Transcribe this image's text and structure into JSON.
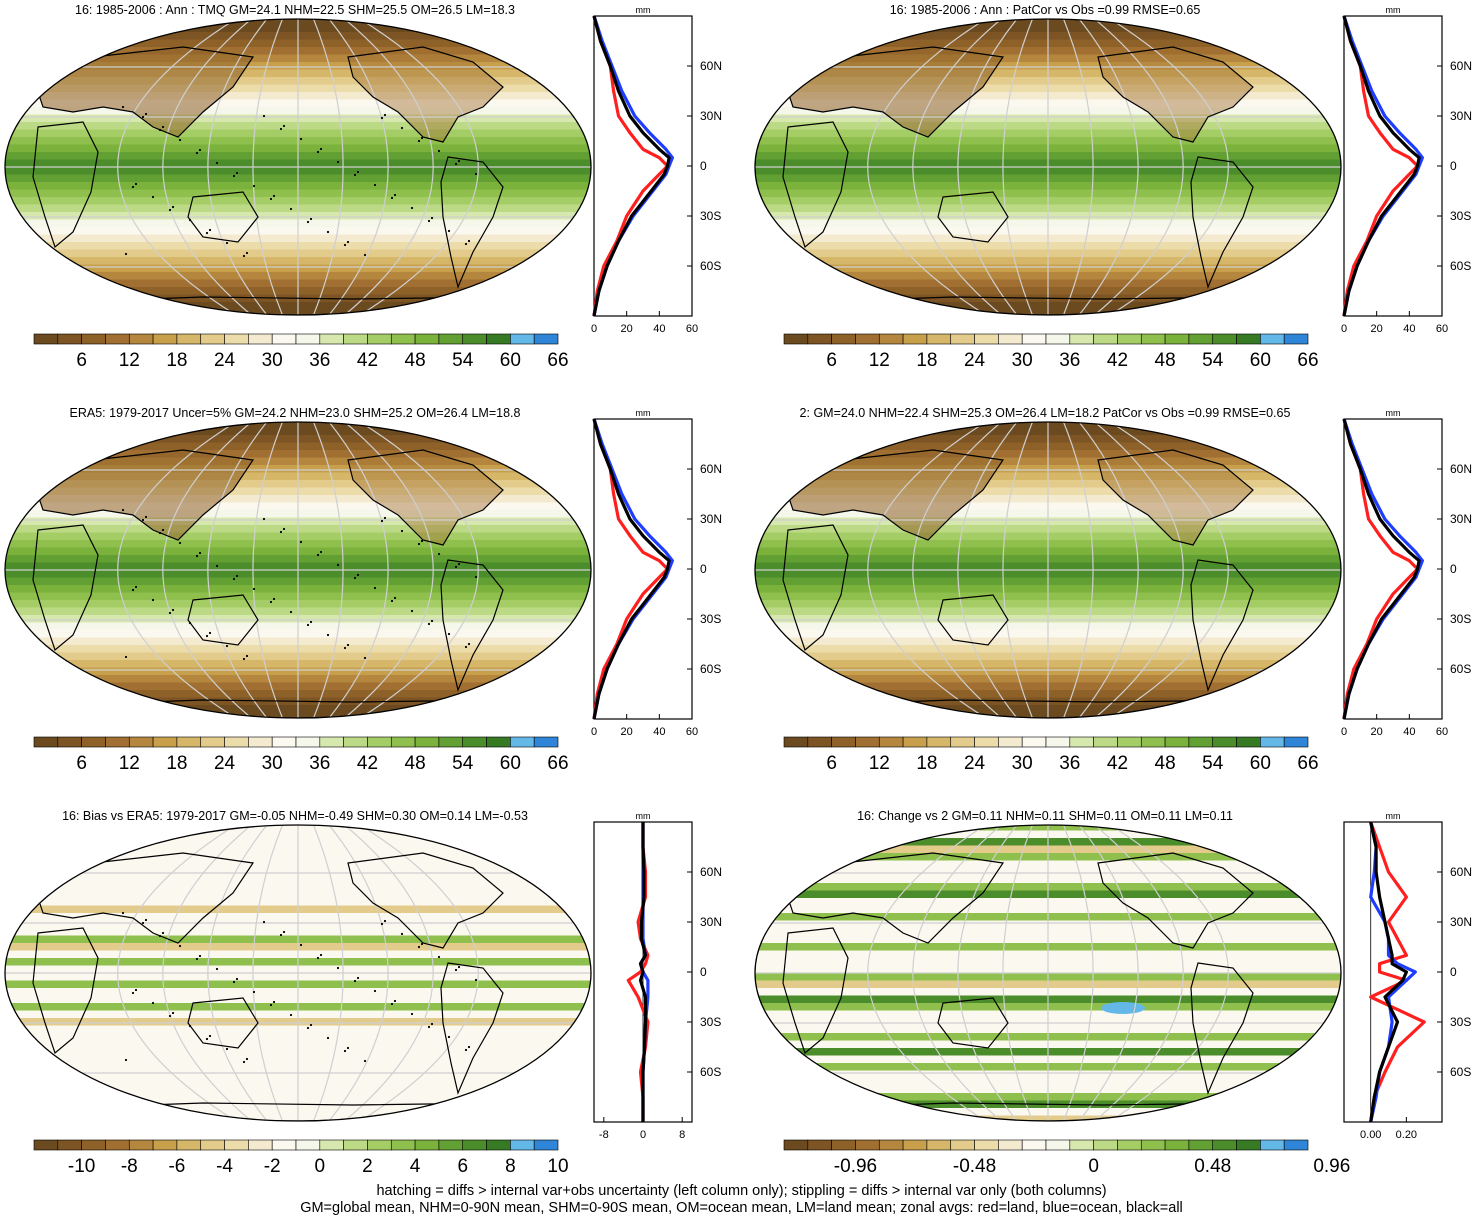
{
  "footer": {
    "line1": "hatching = diffs > internal var+obs uncertainty (left column only); stippling = diffs > internal var only (both columns)",
    "line2": "GM=global mean, NHM=0-90N mean, SHM=0-90S mean, OM=ocean mean, LM=land mean; zonal avgs: red=land, blue=ocean, black=all"
  },
  "colors": {
    "land": "#ff1f1f",
    "ocean": "#1f3dff",
    "all": "#000000",
    "palette": [
      "#6b4a1f",
      "#7d5423",
      "#8e6128",
      "#a06f31",
      "#b5873e",
      "#c8a04c",
      "#d6b76a",
      "#e3cc8b",
      "#ecdcaa",
      "#f3ead0",
      "#fbf8f0",
      "#f4f7ea",
      "#d6e8ae",
      "#bcda86",
      "#a5cd66",
      "#8fbf4c",
      "#7ab23c",
      "#62a033",
      "#4c8d2b",
      "#367a24",
      "#63b8e8",
      "#2f86d8"
    ]
  },
  "panels": [
    {
      "title": "16: 1985-2006 : Ann : TMQ GM=24.1 NHM=22.5 SHM=25.5 OM=26.5 LM=18.3",
      "field": "clim",
      "hatch": true,
      "cbar_labels": [
        "6",
        "12",
        "18",
        "24",
        "30",
        "36",
        "42",
        "48",
        "54",
        "60",
        "66"
      ],
      "zonal_unit": "mm",
      "zonal_xticks": [
        "0",
        "20",
        "40",
        "60"
      ],
      "zonal_xlim": [
        0,
        60
      ],
      "zonal_yticks": [
        "60N",
        "30N",
        "0",
        "30S",
        "60S"
      ]
    },
    {
      "title": "16: 1985-2006 : Ann : PatCor vs Obs =0.99 RMSE=0.65",
      "field": "clim",
      "hatch": false,
      "cbar_labels": [
        "6",
        "12",
        "18",
        "24",
        "30",
        "36",
        "42",
        "48",
        "54",
        "60",
        "66"
      ],
      "zonal_unit": "mm",
      "zonal_xticks": [
        "0",
        "20",
        "40",
        "60"
      ],
      "zonal_xlim": [
        0,
        60
      ],
      "zonal_yticks": [
        "60N",
        "30N",
        "0",
        "30S",
        "60S"
      ]
    },
    {
      "title": "ERA5: 1979-2017 Uncer=5% GM=24.2 NHM=23.0 SHM=25.2 OM=26.4 LM=18.8",
      "field": "clim",
      "hatch": true,
      "cbar_labels": [
        "6",
        "12",
        "18",
        "24",
        "30",
        "36",
        "42",
        "48",
        "54",
        "60",
        "66"
      ],
      "zonal_unit": "mm",
      "zonal_xticks": [
        "0",
        "20",
        "40",
        "60"
      ],
      "zonal_xlim": [
        0,
        60
      ],
      "zonal_yticks": [
        "60N",
        "30N",
        "0",
        "30S",
        "60S"
      ]
    },
    {
      "title": "2: GM=24.0 NHM=22.4 SHM=25.3 OM=26.4 LM=18.2 PatCor vs Obs =0.99 RMSE=0.65",
      "field": "clim",
      "hatch": false,
      "cbar_labels": [
        "6",
        "12",
        "18",
        "24",
        "30",
        "36",
        "42",
        "48",
        "54",
        "60",
        "66"
      ],
      "zonal_unit": "mm",
      "zonal_xticks": [
        "0",
        "20",
        "40",
        "60"
      ],
      "zonal_xlim": [
        0,
        60
      ],
      "zonal_yticks": [
        "60N",
        "30N",
        "0",
        "30S",
        "60S"
      ]
    },
    {
      "title": "16: Bias vs ERA5: 1979-2017 GM=-0.05 NHM=-0.49 SHM=0.30 OM=0.14 LM=-0.53",
      "field": "bias",
      "hatch": true,
      "cbar_labels": [
        "-10",
        "-8",
        "-6",
        "-4",
        "-2",
        "0",
        "2",
        "4",
        "6",
        "8",
        "10"
      ],
      "zonal_unit": "mm",
      "zonal_xticks": [
        "-8",
        "0",
        "8"
      ],
      "zonal_xlim": [
        -10,
        10
      ],
      "zonal_yticks": [
        "60N",
        "30N",
        "0",
        "30S",
        "60S"
      ]
    },
    {
      "title": "16: Change vs 2 GM=0.11 NHM=0.11 SHM=0.11 OM=0.11 LM=0.11",
      "field": "change",
      "hatch": false,
      "cbar_labels": [
        "-0.96",
        "-0.48",
        "0",
        "0.48",
        "0.96"
      ],
      "zonal_unit": "mm",
      "zonal_xticks": [
        "0.00",
        "0.20"
      ],
      "zonal_xlim": [
        -0.15,
        0.4
      ],
      "zonal_yticks": [
        "60N",
        "30N",
        "0",
        "30S",
        "60S"
      ]
    }
  ],
  "chart_data": {
    "type": "line",
    "y_axis": "latitude",
    "lat": [
      -90,
      -75,
      -60,
      -45,
      -30,
      -15,
      -5,
      0,
      5,
      10,
      20,
      30,
      45,
      60,
      75,
      90
    ],
    "clim": {
      "land": [
        0,
        2,
        6,
        14,
        20,
        30,
        40,
        45,
        40,
        30,
        22,
        15,
        12,
        10,
        4,
        0
      ],
      "ocean": [
        0,
        3,
        8,
        15,
        24,
        36,
        44,
        46,
        48,
        44,
        34,
        25,
        17,
        11,
        5,
        0
      ],
      "all": [
        0,
        3,
        8,
        15,
        23,
        35,
        43,
        45,
        46,
        40,
        30,
        22,
        15,
        10,
        4,
        0
      ]
    },
    "bias": {
      "land": [
        0,
        0,
        -0.5,
        0.5,
        1,
        -1,
        -3,
        -0.5,
        0.5,
        1,
        -0.5,
        -1,
        0.5,
        0.5,
        0,
        0
      ],
      "ocean": [
        0,
        0,
        0,
        0.3,
        0.5,
        1,
        1,
        0,
        -0.5,
        0.5,
        0,
        0,
        0,
        0,
        0,
        0
      ],
      "all": [
        0,
        0,
        0,
        0.3,
        0.5,
        0.5,
        -0.5,
        0,
        -0.5,
        0.5,
        -0.3,
        -0.3,
        0.2,
        0.2,
        0,
        0
      ]
    },
    "change": {
      "land": [
        0,
        0.02,
        0.08,
        0.15,
        0.3,
        0,
        0.2,
        0.05,
        0.05,
        0.2,
        0.15,
        0.1,
        0.2,
        0.1,
        0.05,
        0
      ],
      "ocean": [
        0,
        0.03,
        0.05,
        0.1,
        0.12,
        0.1,
        0.2,
        0.25,
        0.15,
        0.1,
        0.1,
        0.08,
        0,
        0.02,
        0.03,
        0
      ],
      "all": [
        0,
        0.02,
        0.05,
        0.1,
        0.15,
        0.08,
        0.18,
        0.2,
        0.12,
        0.12,
        0.1,
        0.08,
        0.05,
        0.03,
        0.03,
        0
      ]
    }
  }
}
